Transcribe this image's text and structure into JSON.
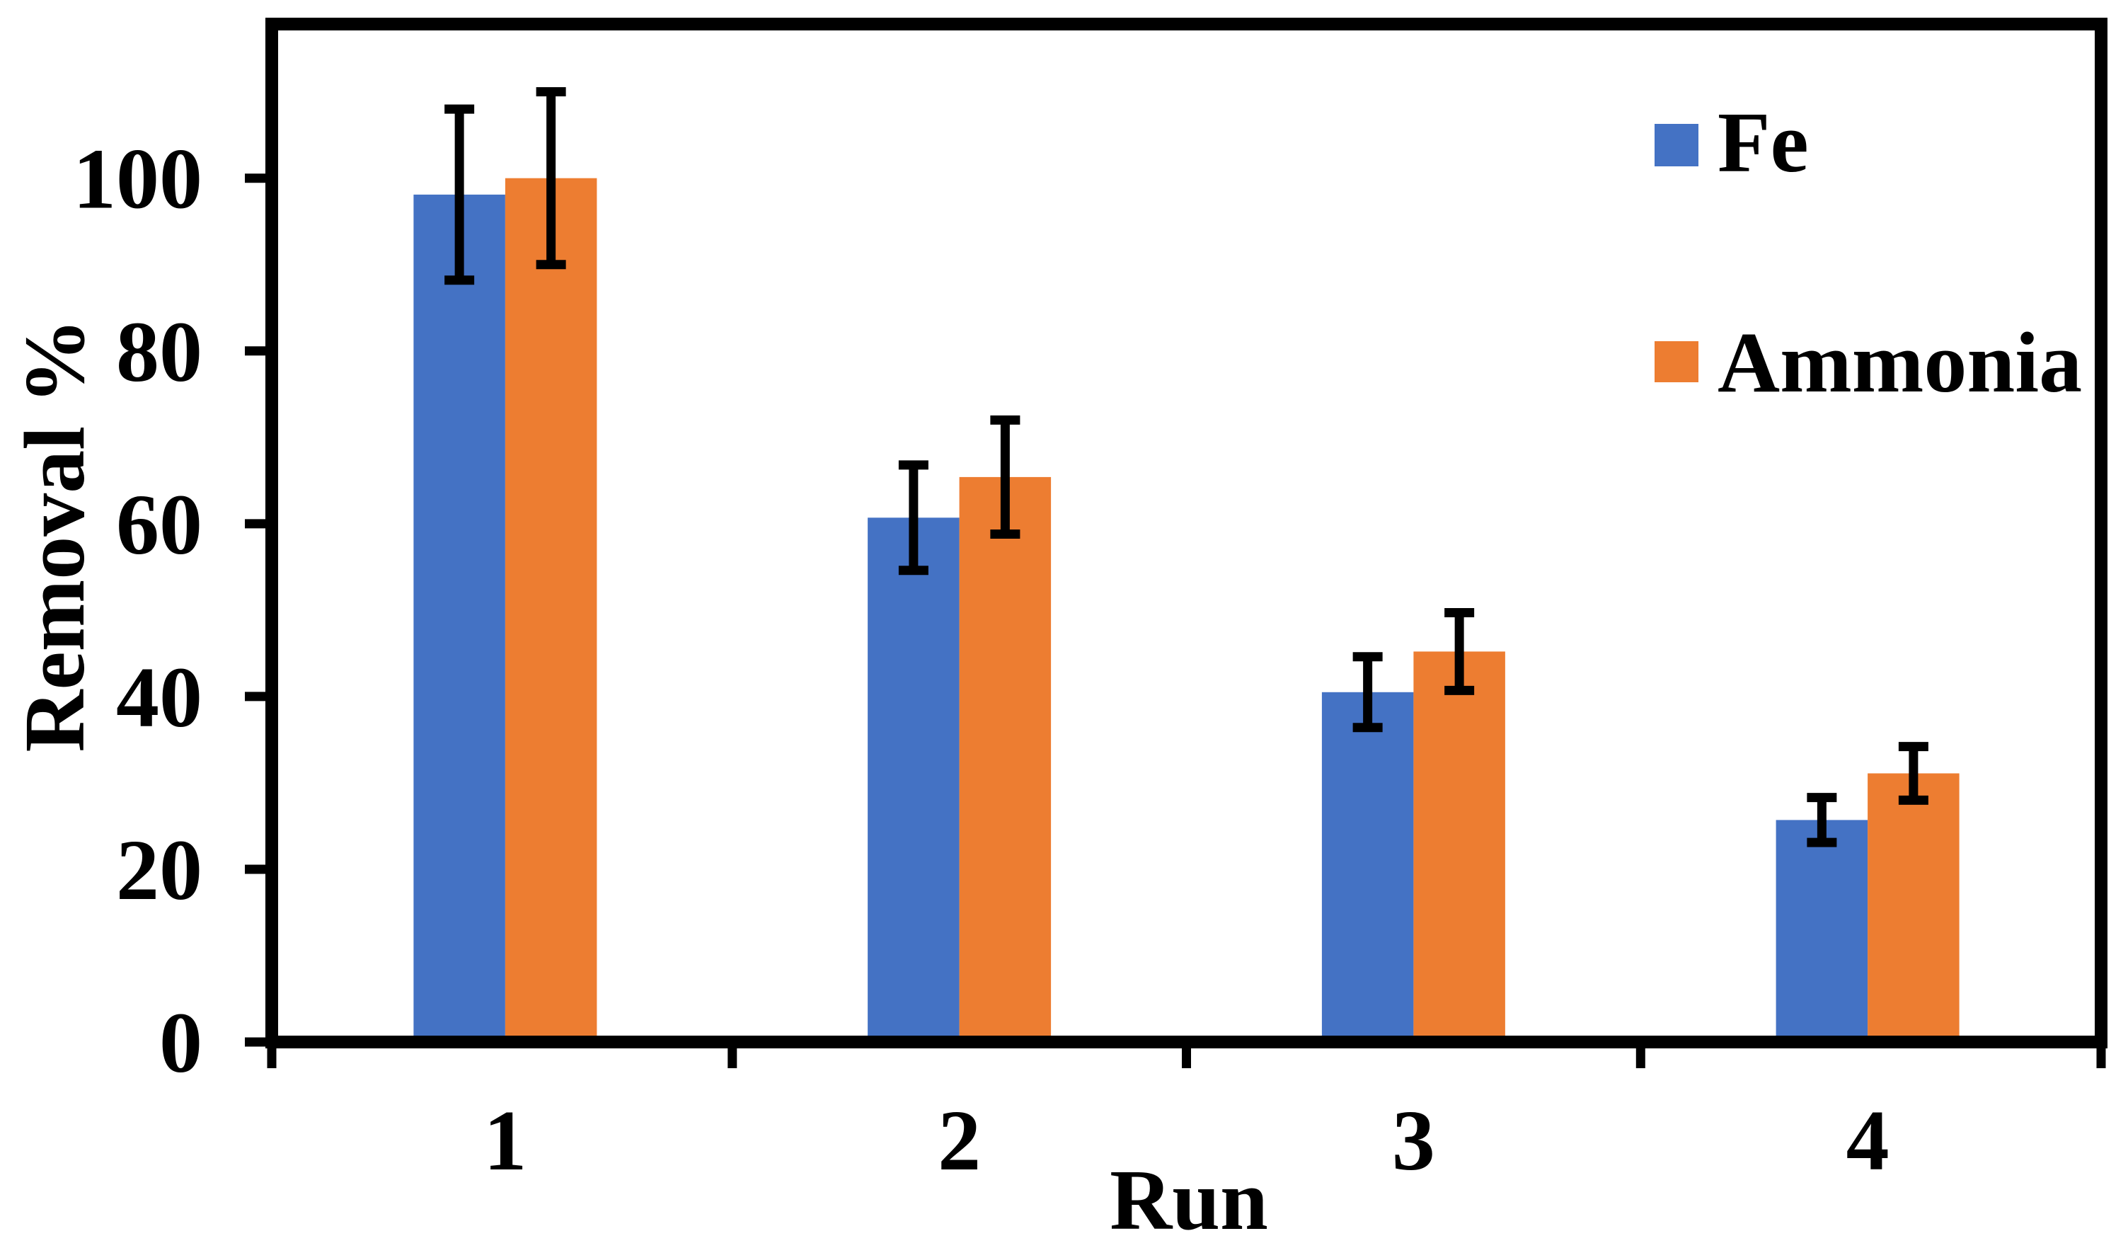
{
  "chart_data": {
    "type": "bar",
    "title": "",
    "xlabel": "Run",
    "ylabel": "Removal %",
    "categories": [
      "1",
      "2",
      "3",
      "4"
    ],
    "series": [
      {
        "name": "Fe",
        "color": "#4472C4",
        "values": [
          98.1,
          60.7,
          40.5,
          25.7
        ],
        "errors": [
          9.9,
          6.1,
          4.1,
          2.6
        ]
      },
      {
        "name": "Ammonia",
        "color": "#ED7D31",
        "values": [
          100.0,
          65.4,
          45.2,
          31.1
        ],
        "errors": [
          10.0,
          6.6,
          4.5,
          3.1
        ]
      }
    ],
    "y_ticks": [
      0,
      20,
      40,
      60,
      80,
      100
    ],
    "y_tick_labels": [
      "0",
      "20",
      "40",
      "60",
      "80",
      "100"
    ],
    "ylim": [
      0,
      117.8
    ],
    "grid": false,
    "error_bars": true,
    "error_bar_color": "#000000",
    "axis_color": "#000000",
    "legend_position": "upper-right"
  }
}
